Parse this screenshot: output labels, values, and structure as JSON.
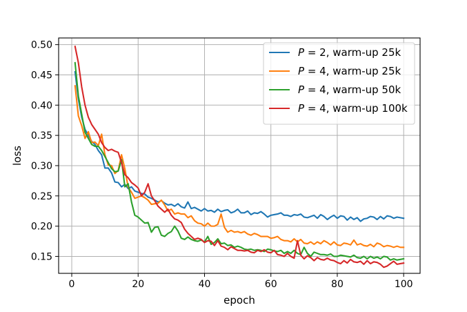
{
  "chart_data": {
    "type": "line",
    "title": "",
    "xlabel": "epoch",
    "ylabel": "loss",
    "xlim": [
      -3.95,
      104.95
    ],
    "ylim": [
      0.122,
      0.511
    ],
    "xticks": [
      0,
      20,
      40,
      60,
      80,
      100
    ],
    "yticks": [
      0.15,
      0.2,
      0.25,
      0.3,
      0.35,
      0.4,
      0.45,
      0.5
    ],
    "xtick_labels": [
      "0",
      "20",
      "40",
      "60",
      "80",
      "100"
    ],
    "ytick_labels": [
      "0.15",
      "0.20",
      "0.25",
      "0.30",
      "0.35",
      "0.40",
      "0.45",
      "0.50"
    ],
    "grid": true,
    "legend_position": "top-right",
    "series": [
      {
        "name": "P = 2, warm-up 25k",
        "legend_parts": [
          "P",
          " = 2, warm-up 25k"
        ],
        "color": "#1f77b4",
        "x": [
          1,
          2,
          3,
          4,
          5,
          6,
          7,
          8,
          9,
          10,
          11,
          12,
          13,
          14,
          15,
          16,
          17,
          18,
          19,
          20,
          21,
          22,
          23,
          24,
          25,
          26,
          27,
          28,
          29,
          30,
          31,
          32,
          33,
          34,
          35,
          36,
          37,
          38,
          39,
          40,
          41,
          42,
          43,
          44,
          45,
          46,
          47,
          48,
          49,
          50,
          51,
          52,
          53,
          54,
          55,
          56,
          57,
          58,
          59,
          60,
          61,
          62,
          63,
          64,
          65,
          66,
          67,
          68,
          69,
          70,
          71,
          72,
          73,
          74,
          75,
          76,
          77,
          78,
          79,
          80,
          81,
          82,
          83,
          84,
          85,
          86,
          87,
          88,
          89,
          90,
          91,
          92,
          93,
          94,
          95,
          96,
          97,
          98,
          99,
          100
        ],
        "y": [
          0.455,
          0.41,
          0.38,
          0.36,
          0.35,
          0.34,
          0.335,
          0.325,
          0.318,
          0.296,
          0.296,
          0.288,
          0.273,
          0.272,
          0.265,
          0.269,
          0.262,
          0.265,
          0.258,
          0.256,
          0.254,
          0.253,
          0.248,
          0.246,
          0.243,
          0.24,
          0.242,
          0.238,
          0.235,
          0.236,
          0.233,
          0.237,
          0.232,
          0.23,
          0.24,
          0.229,
          0.231,
          0.228,
          0.225,
          0.229,
          0.225,
          0.226,
          0.223,
          0.228,
          0.224,
          0.226,
          0.227,
          0.222,
          0.224,
          0.228,
          0.222,
          0.222,
          0.225,
          0.219,
          0.222,
          0.221,
          0.224,
          0.22,
          0.215,
          0.218,
          0.219,
          0.22,
          0.222,
          0.218,
          0.218,
          0.216,
          0.219,
          0.218,
          0.22,
          0.215,
          0.214,
          0.216,
          0.218,
          0.213,
          0.219,
          0.216,
          0.211,
          0.215,
          0.218,
          0.213,
          0.217,
          0.216,
          0.21,
          0.215,
          0.211,
          0.214,
          0.208,
          0.212,
          0.213,
          0.216,
          0.215,
          0.211,
          0.216,
          0.212,
          0.217,
          0.216,
          0.213,
          0.215,
          0.214,
          0.213
        ]
      },
      {
        "name": "P = 4, warm-up 25k",
        "legend_parts": [
          "P",
          " = 4, warm-up 25k"
        ],
        "color": "#ff7f0e",
        "x": [
          1,
          2,
          3,
          4,
          5,
          6,
          7,
          8,
          9,
          10,
          11,
          12,
          13,
          14,
          15,
          16,
          17,
          18,
          19,
          20,
          21,
          22,
          23,
          24,
          25,
          26,
          27,
          28,
          29,
          30,
          31,
          32,
          33,
          34,
          35,
          36,
          37,
          38,
          39,
          40,
          41,
          42,
          43,
          44,
          45,
          46,
          47,
          48,
          49,
          50,
          51,
          52,
          53,
          54,
          55,
          56,
          57,
          58,
          59,
          60,
          61,
          62,
          63,
          64,
          65,
          66,
          67,
          68,
          69,
          70,
          71,
          72,
          73,
          74,
          75,
          76,
          77,
          78,
          79,
          80,
          81,
          82,
          83,
          84,
          85,
          86,
          87,
          88,
          89,
          90,
          91,
          92,
          93,
          94,
          95,
          96,
          97,
          98,
          99,
          100
        ],
        "y": [
          0.432,
          0.382,
          0.366,
          0.345,
          0.356,
          0.338,
          0.339,
          0.333,
          0.352,
          0.318,
          0.301,
          0.3,
          0.287,
          0.292,
          0.318,
          0.295,
          0.264,
          0.256,
          0.246,
          0.248,
          0.25,
          0.247,
          0.243,
          0.236,
          0.237,
          0.238,
          0.243,
          0.235,
          0.225,
          0.228,
          0.22,
          0.222,
          0.22,
          0.22,
          0.214,
          0.217,
          0.209,
          0.205,
          0.204,
          0.2,
          0.205,
          0.2,
          0.2,
          0.203,
          0.22,
          0.198,
          0.19,
          0.193,
          0.19,
          0.191,
          0.189,
          0.191,
          0.187,
          0.185,
          0.188,
          0.186,
          0.183,
          0.183,
          0.183,
          0.18,
          0.181,
          0.183,
          0.178,
          0.176,
          0.176,
          0.174,
          0.179,
          0.174,
          0.178,
          0.172,
          0.171,
          0.174,
          0.17,
          0.174,
          0.171,
          0.176,
          0.173,
          0.169,
          0.174,
          0.169,
          0.168,
          0.172,
          0.171,
          0.169,
          0.177,
          0.169,
          0.171,
          0.168,
          0.167,
          0.17,
          0.166,
          0.172,
          0.17,
          0.166,
          0.168,
          0.167,
          0.165,
          0.167,
          0.165,
          0.165
        ]
      },
      {
        "name": "P = 4, warm-up 50k",
        "legend_parts": [
          "P",
          " = 4, warm-up 50k"
        ],
        "color": "#2ca02c",
        "x": [
          1,
          2,
          3,
          4,
          5,
          6,
          7,
          8,
          9,
          10,
          11,
          12,
          13,
          14,
          15,
          16,
          17,
          18,
          19,
          20,
          21,
          22,
          23,
          24,
          25,
          26,
          27,
          28,
          29,
          30,
          31,
          32,
          33,
          34,
          35,
          36,
          37,
          38,
          39,
          40,
          41,
          42,
          43,
          44,
          45,
          46,
          47,
          48,
          49,
          50,
          51,
          52,
          53,
          54,
          55,
          56,
          57,
          58,
          59,
          60,
          61,
          62,
          63,
          64,
          65,
          66,
          67,
          68,
          69,
          70,
          71,
          72,
          73,
          74,
          75,
          76,
          77,
          78,
          79,
          80,
          81,
          82,
          83,
          84,
          85,
          86,
          87,
          88,
          89,
          90,
          91,
          92,
          93,
          94,
          95,
          96,
          97,
          98,
          99,
          100
        ],
        "y": [
          0.47,
          0.415,
          0.385,
          0.355,
          0.345,
          0.335,
          0.332,
          0.332,
          0.325,
          0.315,
          0.305,
          0.295,
          0.29,
          0.291,
          0.31,
          0.265,
          0.27,
          0.24,
          0.218,
          0.215,
          0.21,
          0.205,
          0.206,
          0.19,
          0.198,
          0.199,
          0.185,
          0.183,
          0.188,
          0.191,
          0.2,
          0.192,
          0.18,
          0.178,
          0.182,
          0.178,
          0.176,
          0.175,
          0.177,
          0.174,
          0.183,
          0.17,
          0.173,
          0.179,
          0.171,
          0.172,
          0.168,
          0.169,
          0.165,
          0.167,
          0.165,
          0.162,
          0.161,
          0.162,
          0.16,
          0.161,
          0.16,
          0.158,
          0.162,
          0.161,
          0.159,
          0.158,
          0.16,
          0.155,
          0.158,
          0.155,
          0.16,
          0.155,
          0.153,
          0.165,
          0.155,
          0.15,
          0.157,
          0.155,
          0.153,
          0.153,
          0.152,
          0.154,
          0.15,
          0.15,
          0.152,
          0.151,
          0.15,
          0.149,
          0.152,
          0.148,
          0.147,
          0.15,
          0.146,
          0.15,
          0.147,
          0.149,
          0.146,
          0.15,
          0.149,
          0.144,
          0.146,
          0.144,
          0.145,
          0.146
        ]
      },
      {
        "name": "P = 4, warm-up 100k",
        "legend_parts": [
          "P",
          " = 4, warm-up 100k"
        ],
        "color": "#d62728",
        "x": [
          1,
          2,
          3,
          4,
          5,
          6,
          7,
          8,
          9,
          10,
          11,
          12,
          13,
          14,
          15,
          16,
          17,
          18,
          19,
          20,
          21,
          22,
          23,
          24,
          25,
          26,
          27,
          28,
          29,
          30,
          31,
          32,
          33,
          34,
          35,
          36,
          37,
          38,
          39,
          40,
          41,
          42,
          43,
          44,
          45,
          46,
          47,
          48,
          49,
          50,
          51,
          52,
          53,
          54,
          55,
          56,
          57,
          58,
          59,
          60,
          61,
          62,
          63,
          64,
          65,
          66,
          67,
          68,
          69,
          70,
          71,
          72,
          73,
          74,
          75,
          76,
          77,
          78,
          79,
          80,
          81,
          82,
          83,
          84,
          85,
          86,
          87,
          88,
          89,
          90,
          91,
          92,
          93,
          94,
          95,
          96,
          97,
          98,
          99,
          100
        ],
        "y": [
          0.497,
          0.47,
          0.43,
          0.4,
          0.38,
          0.368,
          0.36,
          0.352,
          0.338,
          0.33,
          0.325,
          0.327,
          0.324,
          0.322,
          0.305,
          0.285,
          0.28,
          0.272,
          0.268,
          0.263,
          0.25,
          0.256,
          0.27,
          0.25,
          0.242,
          0.233,
          0.228,
          0.223,
          0.228,
          0.218,
          0.212,
          0.21,
          0.206,
          0.195,
          0.188,
          0.183,
          0.178,
          0.18,
          0.178,
          0.173,
          0.176,
          0.175,
          0.168,
          0.176,
          0.167,
          0.165,
          0.161,
          0.166,
          0.163,
          0.16,
          0.16,
          0.159,
          0.16,
          0.157,
          0.156,
          0.16,
          0.158,
          0.161,
          0.157,
          0.156,
          0.16,
          0.153,
          0.152,
          0.15,
          0.155,
          0.15,
          0.147,
          0.176,
          0.152,
          0.146,
          0.151,
          0.148,
          0.143,
          0.148,
          0.145,
          0.144,
          0.147,
          0.144,
          0.143,
          0.14,
          0.138,
          0.143,
          0.139,
          0.145,
          0.141,
          0.14,
          0.142,
          0.137,
          0.143,
          0.138,
          0.141,
          0.14,
          0.137,
          0.132,
          0.134,
          0.138,
          0.142,
          0.137,
          0.138,
          0.139
        ]
      }
    ]
  }
}
